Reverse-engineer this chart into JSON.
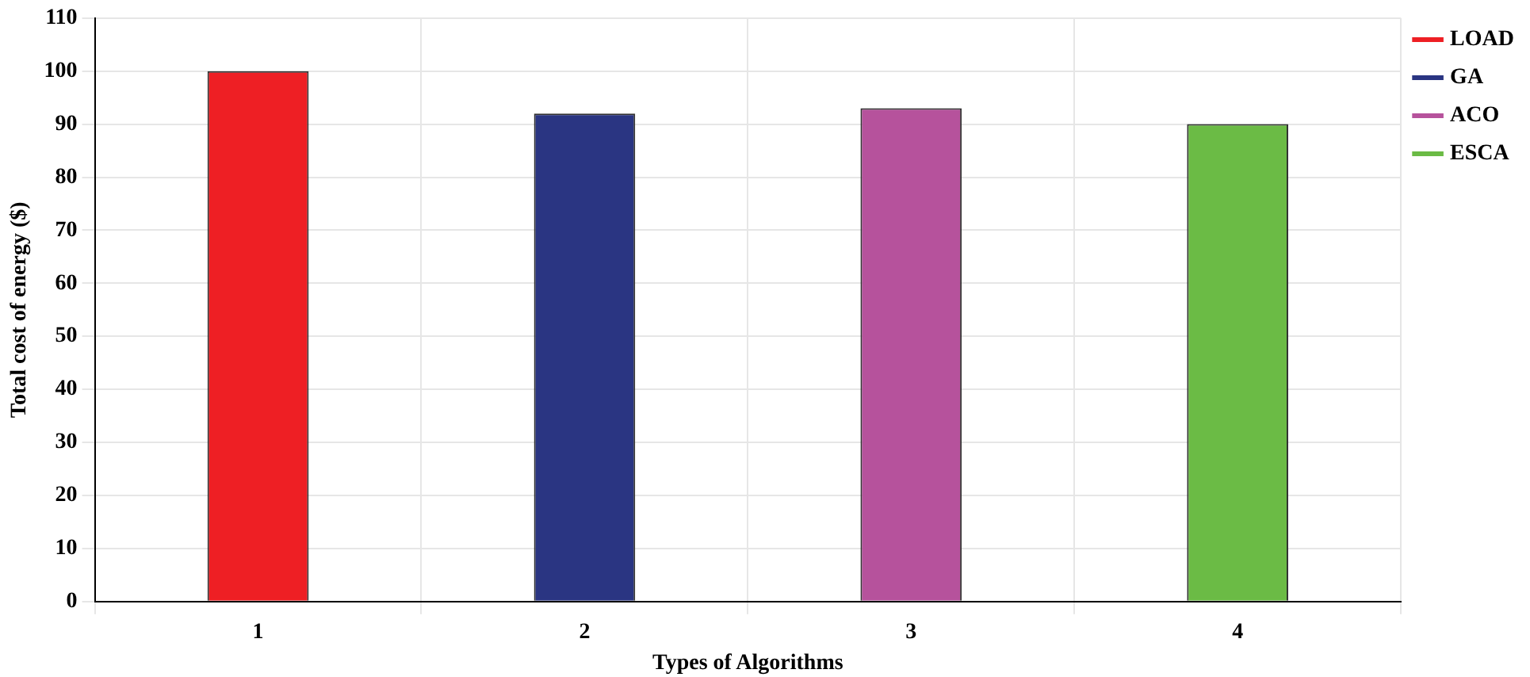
{
  "chart_data": {
    "type": "bar",
    "xlabel": "Types of Algorithms",
    "ylabel": "Total cost of energy ($)",
    "categories": [
      "1",
      "2",
      "3",
      "4"
    ],
    "series": [
      {
        "name": "LOAD",
        "color": "#ee1f24",
        "values": [
          100,
          null,
          null,
          null
        ]
      },
      {
        "name": "GA",
        "color": "#2a3582",
        "values": [
          null,
          92,
          null,
          null
        ]
      },
      {
        "name": "ACO",
        "color": "#b6529c",
        "values": [
          null,
          null,
          93,
          null
        ]
      },
      {
        "name": "ESCA",
        "color": "#6bbb45",
        "values": [
          null,
          null,
          null,
          90
        ]
      }
    ],
    "ylim": [
      0,
      110
    ],
    "yticks": [
      0,
      10,
      20,
      30,
      40,
      50,
      60,
      70,
      80,
      90,
      100,
      110
    ],
    "grid": true,
    "legend": "top right"
  }
}
